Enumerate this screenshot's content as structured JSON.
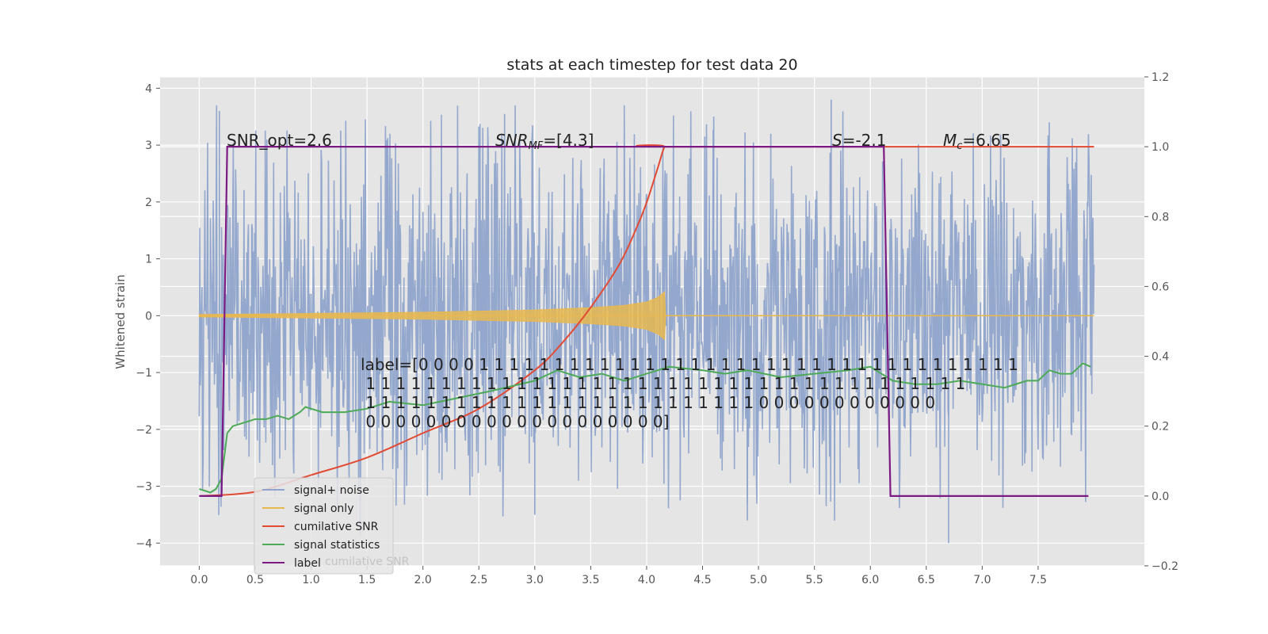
{
  "chart_data": {
    "type": "line",
    "title": "stats at each timestep for test data 20",
    "xlabel": "",
    "ylabel": "Whitened strain",
    "xlim": [
      -0.35,
      8.45
    ],
    "ylim": [
      -4.4,
      4.2
    ],
    "y2lim": [
      -0.2,
      1.2
    ],
    "x_ticks": [
      "0.0",
      "0.5",
      "1.0",
      "1.5",
      "2.0",
      "2.5",
      "3.0",
      "3.5",
      "4.0",
      "4.5",
      "5.0",
      "5.5",
      "6.0",
      "6.5",
      "7.0",
      "7.5"
    ],
    "y_ticks": [
      "4",
      "3",
      "2",
      "1",
      "0",
      "−1",
      "−2",
      "−3",
      "−4"
    ],
    "y2_ticks": [
      "1.2",
      "1.0",
      "0.8",
      "0.6",
      "0.4",
      "0.2",
      "0.0",
      "−0.2"
    ],
    "grid": true,
    "legend_position": "lower-left",
    "annotations": {
      "snr_opt": "SNR_opt=2.6",
      "snr_mf_sym": "SNR",
      "snr_mf_sub": "MF",
      "snr_mf_val": "=[4.3]",
      "s_sym": "S",
      "s_val": "=-2.1",
      "mc_sym": "M",
      "mc_sub": "c",
      "mc_val": "=6.65",
      "label_lines": [
        "label=[0 0 0 0 1 1 1 1 1 1 1 1 1 1 1 1 1 1 1 1 1 1 1 1 1 1 1 1 1 1 1 1 1 1 1 1 1 1 1 1",
        " 1 1 1 1 1 1 1 1 1 1 1 1 1 1 1 1 1 1 1 1 1 1 1 1 1 1 1 1 1 1 1 1 1 1 1 1 1 1 1 1",
        " 1 1 1 1 1 1 1 1 1 1 1 1 1 1 1 1 1 1 1 1 1 1 1 1 1 1 0 0 0 0 0 0 0 0 0 0 0 0",
        " 0 0 0 0 0 0 0 0 0 0 0 0 0 0 0 0 0 0 0 0]"
      ]
    },
    "series": [
      {
        "name": "signal+ noise",
        "axis": "left",
        "color": "#8fa4cc",
        "x_range": [
          0.0,
          8.0
        ],
        "typical_amplitude": 2.4,
        "extremes": [
          {
            "x": 0.18,
            "y": 3.6
          },
          {
            "x": 4.6,
            "y": 3.5
          },
          {
            "x": 5.65,
            "y": 3.8
          },
          {
            "x": 7.6,
            "y": 3.4
          },
          {
            "x": 6.7,
            "y": -4.0
          },
          {
            "x": 4.9,
            "y": -3.6
          },
          {
            "x": 3.0,
            "y": -3.5
          }
        ]
      },
      {
        "name": "signal only",
        "axis": "left",
        "color": "#e8b84f",
        "x": [
          0.0,
          0.5,
          1.0,
          1.5,
          2.0,
          2.5,
          3.0,
          3.5,
          3.8,
          4.0,
          4.1,
          4.16,
          4.17,
          8.0
        ],
        "envelope": [
          0.02,
          0.03,
          0.04,
          0.05,
          0.06,
          0.08,
          0.1,
          0.14,
          0.18,
          0.24,
          0.32,
          0.42,
          0.0,
          0.0
        ]
      },
      {
        "name": "cumilative SNR",
        "axis": "right",
        "color": "#e24a33",
        "x": [
          0.0,
          0.5,
          1.0,
          1.5,
          2.0,
          2.5,
          3.0,
          3.25,
          3.5,
          3.75,
          3.9,
          4.0,
          4.1,
          4.16,
          4.2,
          8.0
        ],
        "values": [
          0.0,
          0.012,
          0.06,
          0.11,
          0.18,
          0.25,
          0.36,
          0.44,
          0.54,
          0.66,
          0.76,
          0.84,
          0.94,
          1.0,
          1.0,
          1.0
        ]
      },
      {
        "name": "signal statistics",
        "axis": "right",
        "color": "#4daa57",
        "x": [
          0.0,
          0.1,
          0.15,
          0.2,
          0.25,
          0.3,
          0.4,
          0.5,
          0.6,
          0.7,
          0.8,
          0.9,
          0.95,
          1.0,
          1.1,
          1.3,
          1.5,
          1.7,
          2.0,
          2.3,
          2.6,
          3.0,
          3.2,
          3.4,
          3.6,
          3.8,
          4.0,
          4.2,
          4.5,
          4.7,
          4.9,
          5.2,
          5.5,
          5.8,
          6.0,
          6.2,
          6.4,
          6.6,
          6.8,
          7.0,
          7.2,
          7.4,
          7.5,
          7.6,
          7.7,
          7.8,
          7.9,
          7.97
        ],
        "values": [
          0.02,
          0.01,
          0.02,
          0.05,
          0.18,
          0.2,
          0.21,
          0.22,
          0.22,
          0.23,
          0.22,
          0.24,
          0.255,
          0.25,
          0.24,
          0.24,
          0.25,
          0.27,
          0.26,
          0.28,
          0.3,
          0.33,
          0.36,
          0.34,
          0.35,
          0.33,
          0.35,
          0.37,
          0.36,
          0.35,
          0.36,
          0.34,
          0.35,
          0.36,
          0.37,
          0.33,
          0.32,
          0.32,
          0.33,
          0.32,
          0.31,
          0.33,
          0.33,
          0.36,
          0.35,
          0.35,
          0.38,
          0.37
        ]
      },
      {
        "name": "label",
        "axis": "right",
        "color": "#7b1a83",
        "x": [
          0.0,
          0.2,
          0.25,
          6.12,
          6.18,
          7.95
        ],
        "values": [
          0.0,
          0.0,
          1.0,
          1.0,
          0.0,
          0.0
        ]
      }
    ],
    "legend_ghost_text": "cumilative SNR"
  }
}
